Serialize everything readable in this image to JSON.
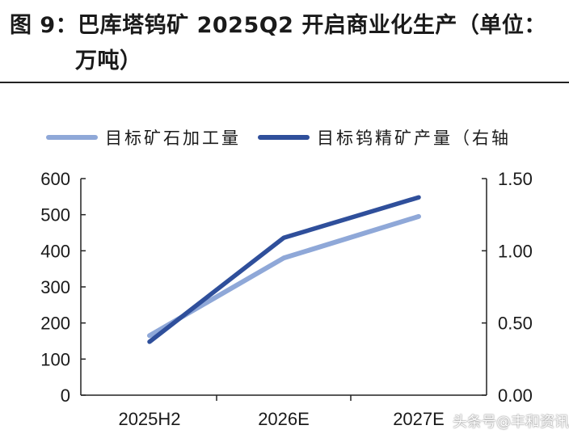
{
  "figure": {
    "title_line1": "图 9：巴库塔钨矿 2025Q2 开启商业化生产（单位：",
    "title_line2": "万吨）"
  },
  "chart_data": {
    "type": "line",
    "categories": [
      "2025H2",
      "2026E",
      "2027E"
    ],
    "series": [
      {
        "name": "目标矿石加工量",
        "axis": "left",
        "color": "#8fa8d8",
        "values": [
          165,
          380,
          495
        ]
      },
      {
        "name": "目标钨精矿产量（右轴",
        "axis": "right",
        "color": "#2f4f9b",
        "values": [
          0.37,
          1.09,
          1.37
        ]
      }
    ],
    "left_axis": {
      "min": 0,
      "max": 600,
      "step": 100,
      "ticks": [
        "0",
        "100",
        "200",
        "300",
        "400",
        "500",
        "600"
      ]
    },
    "right_axis": {
      "min": 0,
      "max": 1.5,
      "step": 0.5,
      "ticks": [
        "0.00",
        "0.50",
        "1.00",
        "1.50"
      ]
    },
    "grid": false,
    "legend_position": "top"
  },
  "watermark": "头条号@丰和资讯"
}
